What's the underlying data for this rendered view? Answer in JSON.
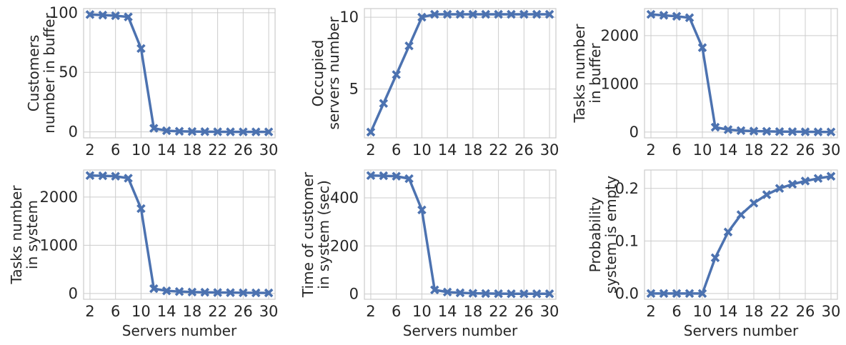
{
  "colors": {
    "series": "#4c72b0",
    "grid": "#cccccc",
    "text": "#262626"
  },
  "chart_data": [
    {
      "type": "line",
      "ylabel": [
        "Customers",
        "number in buffer"
      ],
      "xlabel": "",
      "x": [
        2,
        4,
        6,
        8,
        10,
        12,
        14,
        16,
        18,
        20,
        22,
        24,
        26,
        28,
        30
      ],
      "values": [
        98.5,
        98,
        97.5,
        96.5,
        70,
        3,
        1,
        0.5,
        0.3,
        0.2,
        0.1,
        0.05,
        0,
        0,
        0
      ],
      "xticks": [
        2,
        6,
        10,
        14,
        18,
        22,
        26,
        30
      ],
      "yticks": [
        {
          "v": 0,
          "label": "0"
        },
        {
          "v": 50,
          "label": "50"
        },
        {
          "v": 100,
          "label": "100"
        }
      ],
      "xlim": [
        1,
        31
      ],
      "ylim": [
        -5,
        103.5
      ],
      "grid": true
    },
    {
      "type": "line",
      "ylabel": [
        "Occupied",
        "servers number"
      ],
      "xlabel": "",
      "x": [
        2,
        4,
        6,
        8,
        10,
        12,
        14,
        16,
        18,
        20,
        22,
        24,
        26,
        28,
        30
      ],
      "values": [
        2,
        4,
        6,
        8,
        10,
        10.2,
        10.2,
        10.2,
        10.2,
        10.2,
        10.2,
        10.2,
        10.2,
        10.2,
        10.2
      ],
      "xticks": [
        2,
        6,
        10,
        14,
        18,
        22,
        26,
        30
      ],
      "yticks": [
        {
          "v": 5,
          "label": "5"
        },
        {
          "v": 10,
          "label": "10"
        }
      ],
      "xlim": [
        1,
        31
      ],
      "ylim": [
        1.6,
        10.6
      ],
      "grid": true
    },
    {
      "type": "line",
      "ylabel": [
        "Tasks number",
        "in buffer"
      ],
      "xlabel": "",
      "x": [
        2,
        4,
        6,
        8,
        10,
        12,
        14,
        16,
        18,
        20,
        22,
        24,
        26,
        28,
        30
      ],
      "values": [
        2440,
        2420,
        2400,
        2370,
        1750,
        100,
        50,
        30,
        20,
        15,
        10,
        8,
        5,
        3,
        2
      ],
      "xticks": [
        2,
        6,
        10,
        14,
        18,
        22,
        26,
        30
      ],
      "yticks": [
        {
          "v": 0,
          "label": "0"
        },
        {
          "v": 1000,
          "label": "1000"
        },
        {
          "v": 2000,
          "label": "2000"
        }
      ],
      "xlim": [
        1,
        31
      ],
      "ylim": [
        -120,
        2560
      ],
      "grid": true
    },
    {
      "type": "line",
      "ylabel": [
        "Tasks number",
        "in system"
      ],
      "xlabel": "Servers number",
      "x": [
        2,
        4,
        6,
        8,
        10,
        12,
        14,
        16,
        18,
        20,
        22,
        24,
        26,
        28,
        30
      ],
      "values": [
        2445,
        2440,
        2430,
        2390,
        1760,
        100,
        55,
        40,
        30,
        25,
        20,
        18,
        15,
        13,
        12
      ],
      "xticks": [
        2,
        6,
        10,
        14,
        18,
        22,
        26,
        30
      ],
      "yticks": [
        {
          "v": 0,
          "label": "0"
        },
        {
          "v": 1000,
          "label": "1000"
        },
        {
          "v": 2000,
          "label": "2000"
        }
      ],
      "xlim": [
        1,
        31
      ],
      "ylim": [
        -120,
        2560
      ],
      "grid": true
    },
    {
      "type": "line",
      "ylabel": [
        "Time of customer",
        "in system (sec)"
      ],
      "xlabel": "Servers number",
      "x": [
        2,
        4,
        6,
        8,
        10,
        12,
        14,
        16,
        18,
        20,
        22,
        24,
        26,
        28,
        30
      ],
      "values": [
        493,
        492,
        490,
        480,
        350,
        17,
        8,
        5,
        3,
        2,
        1.5,
        1,
        1,
        1,
        1
      ],
      "xticks": [
        2,
        6,
        10,
        14,
        18,
        22,
        26,
        30
      ],
      "yticks": [
        {
          "v": 0,
          "label": "0"
        },
        {
          "v": 200,
          "label": "200"
        },
        {
          "v": 400,
          "label": "400"
        }
      ],
      "xlim": [
        1,
        31
      ],
      "ylim": [
        -22,
        516
      ],
      "grid": true
    },
    {
      "type": "line",
      "ylabel": [
        "Probability",
        "system is empty"
      ],
      "xlabel": "Servers number",
      "x": [
        2,
        4,
        6,
        8,
        10,
        12,
        14,
        16,
        18,
        20,
        22,
        24,
        26,
        28,
        30
      ],
      "values": [
        0,
        0,
        0,
        0,
        0,
        0.068,
        0.117,
        0.15,
        0.172,
        0.188,
        0.2,
        0.208,
        0.214,
        0.219,
        0.223
      ],
      "xticks": [
        2,
        6,
        10,
        14,
        18,
        22,
        26,
        30
      ],
      "yticks": [
        {
          "v": 0.0,
          "label": "0.0"
        },
        {
          "v": 0.1,
          "label": "0.1"
        },
        {
          "v": 0.2,
          "label": "0.2"
        }
      ],
      "xlim": [
        1,
        31
      ],
      "ylim": [
        -0.011,
        0.235
      ],
      "grid": true
    }
  ]
}
